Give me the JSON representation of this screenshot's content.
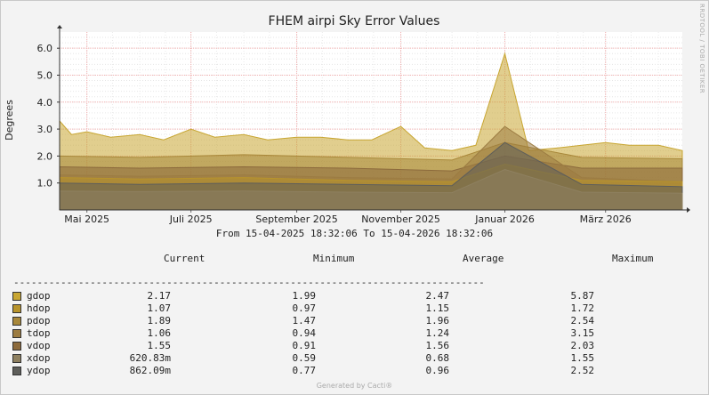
{
  "chart_data": {
    "type": "area",
    "title": "FHEM airpi Sky Error Values",
    "ylabel": "Degrees",
    "xlabel": "",
    "ylim": [
      0,
      6.6
    ],
    "yticks": [
      "1.0",
      "2.0",
      "3.0",
      "4.0",
      "5.0",
      "6.0"
    ],
    "ytick_values": [
      1,
      2,
      3,
      4,
      5,
      6
    ],
    "x_tick_labels": [
      "Mai 2025",
      "Juli 2025",
      "September 2025",
      "November 2025",
      "Januar 2026",
      "März 2026"
    ],
    "x_tick_dates": [
      "2025-05-01",
      "2025-07-01",
      "2025-09-01",
      "2025-11-01",
      "2026-01-01",
      "2026-03-01"
    ],
    "xrange": [
      "2025-04-15",
      "2026-04-15"
    ],
    "grid": true,
    "series": [
      {
        "name": "gdop",
        "color": "#c8a632",
        "x": [
          "2025-04-15",
          "2025-04-22",
          "2025-05-01",
          "2025-05-15",
          "2025-06-01",
          "2025-06-15",
          "2025-07-01",
          "2025-07-15",
          "2025-08-01",
          "2025-08-15",
          "2025-09-01",
          "2025-09-15",
          "2025-10-01",
          "2025-10-15",
          "2025-11-01",
          "2025-11-15",
          "2025-12-01",
          "2025-12-15",
          "2026-01-01",
          "2026-01-15",
          "2026-02-01",
          "2026-02-15",
          "2026-03-01",
          "2026-03-15",
          "2026-04-01",
          "2026-04-15"
        ],
        "y": [
          3.3,
          2.8,
          2.9,
          2.7,
          2.8,
          2.6,
          3.0,
          2.7,
          2.8,
          2.6,
          2.7,
          2.7,
          2.6,
          2.6,
          3.1,
          2.3,
          2.2,
          2.4,
          5.8,
          2.2,
          2.3,
          2.4,
          2.5,
          2.4,
          2.4,
          2.2
        ]
      },
      {
        "name": "hdop",
        "color": "#b8942c",
        "x": [
          "2025-04-15",
          "2025-06-01",
          "2025-08-01",
          "2025-10-01",
          "2025-12-01",
          "2026-01-01",
          "2026-02-15",
          "2026-04-15"
        ],
        "y": [
          1.2,
          1.15,
          1.2,
          1.1,
          1.05,
          1.7,
          1.1,
          1.05
        ]
      },
      {
        "name": "pdop",
        "color": "#a8883a",
        "x": [
          "2025-04-15",
          "2025-06-01",
          "2025-08-01",
          "2025-10-01",
          "2025-12-01",
          "2026-01-01",
          "2026-02-15",
          "2026-04-15"
        ],
        "y": [
          2.0,
          1.95,
          2.05,
          1.95,
          1.85,
          2.5,
          1.95,
          1.9
        ]
      },
      {
        "name": "tdop",
        "color": "#9c7c42",
        "x": [
          "2025-04-15",
          "2025-06-01",
          "2025-08-01",
          "2025-10-01",
          "2025-12-01",
          "2026-01-01",
          "2026-02-15",
          "2026-04-15"
        ],
        "y": [
          1.3,
          1.25,
          1.3,
          1.2,
          1.15,
          3.1,
          1.2,
          1.05
        ]
      },
      {
        "name": "vdop",
        "color": "#8c6a3c",
        "x": [
          "2025-04-15",
          "2025-06-01",
          "2025-08-01",
          "2025-10-01",
          "2025-12-01",
          "2026-01-01",
          "2026-02-15",
          "2026-04-15"
        ],
        "y": [
          1.6,
          1.55,
          1.6,
          1.55,
          1.45,
          2.0,
          1.55,
          1.55
        ]
      },
      {
        "name": "xdop",
        "color": "#8e8060",
        "x": [
          "2025-04-15",
          "2025-06-01",
          "2025-08-01",
          "2025-10-01",
          "2025-12-01",
          "2026-01-01",
          "2026-02-15",
          "2026-04-15"
        ],
        "y": [
          0.7,
          0.68,
          0.7,
          0.66,
          0.64,
          1.5,
          0.66,
          0.62
        ]
      },
      {
        "name": "ydop",
        "color": "#5e5e5a",
        "x": [
          "2025-04-15",
          "2025-06-01",
          "2025-08-01",
          "2025-10-01",
          "2025-12-01",
          "2026-01-01",
          "2026-02-15",
          "2026-04-15"
        ],
        "y": [
          1.0,
          0.95,
          1.0,
          0.95,
          0.9,
          2.5,
          0.95,
          0.86
        ]
      }
    ]
  },
  "range_text": "From 15-04-2025 18:32:06 To 15-04-2026 18:32:06",
  "legend_headers": {
    "current": "Current",
    "minimum": "Minimum",
    "average": "Average",
    "maximum": "Maximum"
  },
  "separator": "--------------------------------------------------------------------------------",
  "legend": [
    {
      "name": "gdop",
      "color": "#c8a632",
      "current": "2.17",
      "minimum": "1.99",
      "average": "2.47",
      "maximum": "5.87"
    },
    {
      "name": "hdop",
      "color": "#b8942c",
      "current": "1.07",
      "minimum": "0.97",
      "average": "1.15",
      "maximum": "1.72"
    },
    {
      "name": "pdop",
      "color": "#a8883a",
      "current": "1.89",
      "minimum": "1.47",
      "average": "1.96",
      "maximum": "2.54"
    },
    {
      "name": "tdop",
      "color": "#9c7c42",
      "current": "1.06",
      "minimum": "0.94",
      "average": "1.24",
      "maximum": "3.15"
    },
    {
      "name": "vdop",
      "color": "#8c6a3c",
      "current": "1.55",
      "minimum": "0.91",
      "average": "1.56",
      "maximum": "2.03"
    },
    {
      "name": "xdop",
      "color": "#8e8060",
      "current": "620.83m",
      "minimum": "0.59",
      "average": "0.68",
      "maximum": "1.55"
    },
    {
      "name": "ydop",
      "color": "#5e5e5a",
      "current": "862.09m",
      "minimum": "0.77",
      "average": "0.96",
      "maximum": "2.52"
    }
  ],
  "footer": "Generated by Cacti®",
  "side_label": "RRDTOOL / TOBI OETIKER"
}
